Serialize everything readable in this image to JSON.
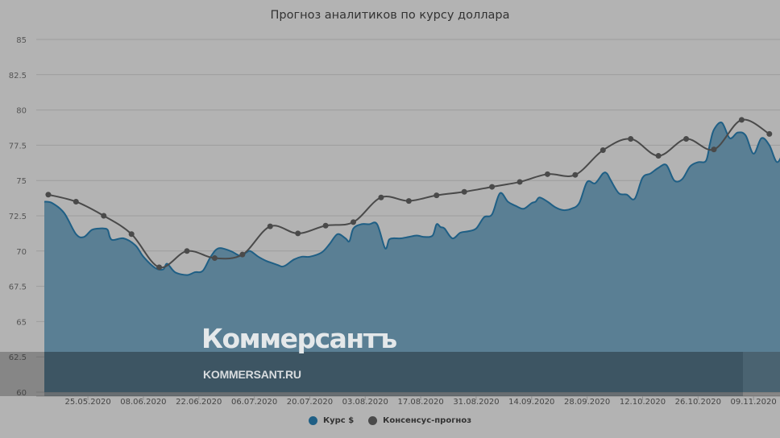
{
  "chart_data": {
    "type": "area",
    "title": "Прогноз аналитиков по курсу доллара",
    "xlabel": "",
    "ylabel": "",
    "ylim": [
      60,
      85
    ],
    "yticks": [
      "85",
      "82.5",
      "80",
      "77.5",
      "75",
      "72.5",
      "70",
      "67.5",
      "65",
      "62.5",
      "60"
    ],
    "xticks": [
      "25.05.2020",
      "08.06.2020",
      "22.06.2020",
      "06.07.2020",
      "20.07.2020",
      "03.08.2020",
      "17.08.2020",
      "31.08.2020",
      "14.09.2020",
      "28.09.2020",
      "12.10.2020",
      "26.10.2020",
      "09.11.2020"
    ],
    "grid": true,
    "legend_position": "bottom",
    "series": [
      {
        "name": "Курс $",
        "type": "area",
        "color": "#1f5f85",
        "fill": "#5a7f94",
        "x_days_from_start": [
          0,
          2,
          5,
          8,
          10,
          12,
          14,
          15,
          16,
          17,
          20,
          23,
          25,
          28,
          30,
          31,
          33,
          36,
          38,
          40,
          42,
          44,
          47,
          49,
          50,
          51,
          52,
          54,
          56,
          57,
          58,
          59,
          60,
          61,
          63,
          65,
          67,
          70,
          72,
          74,
          76,
          77,
          78,
          80,
          82,
          84,
          86,
          87,
          88,
          89,
          90,
          92,
          94,
          96,
          98,
          99,
          100,
          101,
          103,
          105,
          107,
          109,
          111,
          113,
          115,
          117,
          119,
          121,
          123,
          124,
          125,
          127,
          129,
          131,
          133,
          135,
          137,
          139,
          141,
          142,
          143,
          145,
          147,
          149,
          151,
          153,
          155,
          157,
          159,
          161,
          163,
          165,
          167,
          168,
          169,
          171,
          173,
          175,
          177,
          179,
          181,
          183,
          185,
          187
        ],
        "values": [
          73.5,
          73.4,
          72.7,
          71.2,
          71.0,
          71.5,
          71.6,
          71.6,
          71.5,
          70.8,
          70.9,
          70.4,
          69.6,
          68.8,
          68.7,
          69.1,
          68.5,
          68.3,
          68.5,
          68.6,
          69.6,
          70.2,
          70.0,
          69.7,
          69.7,
          69.9,
          70.0,
          69.6,
          69.3,
          69.2,
          69.1,
          69.0,
          68.9,
          69.0,
          69.4,
          69.6,
          69.6,
          69.9,
          70.5,
          71.2,
          70.9,
          70.7,
          71.6,
          71.9,
          71.9,
          71.9,
          70.2,
          70.8,
          70.9,
          70.9,
          70.9,
          71.0,
          71.1,
          71.0,
          71.1,
          71.9,
          71.7,
          71.6,
          70.9,
          71.3,
          71.4,
          71.6,
          72.4,
          72.6,
          74.1,
          73.5,
          73.2,
          73.0,
          73.4,
          73.5,
          73.8,
          73.5,
          73.1,
          72.9,
          73.0,
          73.4,
          74.9,
          74.8,
          75.5,
          75.5,
          75.0,
          74.1,
          74.0,
          73.7,
          75.2,
          75.5,
          75.9,
          76.1,
          75.0,
          75.1,
          76.0,
          76.3,
          76.4,
          77.6,
          78.6,
          79.1,
          78.0,
          78.4,
          78.2,
          76.9,
          78.0,
          77.5,
          76.3,
          77.4
        ]
      },
      {
        "name": "Консенсус-прогноз",
        "type": "line",
        "color": "#4a4a4a",
        "x_days_from_start": [
          1,
          8,
          15,
          22,
          29,
          36,
          43,
          50,
          57,
          64,
          71,
          78,
          85,
          92,
          99,
          106,
          113,
          120,
          127,
          134,
          141,
          148,
          155,
          162,
          169,
          176,
          183
        ],
        "values": [
          74.0,
          73.5,
          72.5,
          71.2,
          68.85,
          70.0,
          69.5,
          69.75,
          71.75,
          71.25,
          71.8,
          72.05,
          73.8,
          73.55,
          73.95,
          74.2,
          74.55,
          74.9,
          75.45,
          75.4,
          77.15,
          77.95,
          76.75,
          77.95,
          77.2,
          79.3,
          78.3
        ]
      }
    ]
  },
  "legend": {
    "items": [
      {
        "label": "Курс $",
        "color": "#1f5f85"
      },
      {
        "label": "Консенсус-прогноз",
        "color": "#4a4a4a"
      }
    ]
  },
  "watermark": {
    "logo": "Коммерсантъ",
    "url": "KOMMERSANT.RU"
  }
}
